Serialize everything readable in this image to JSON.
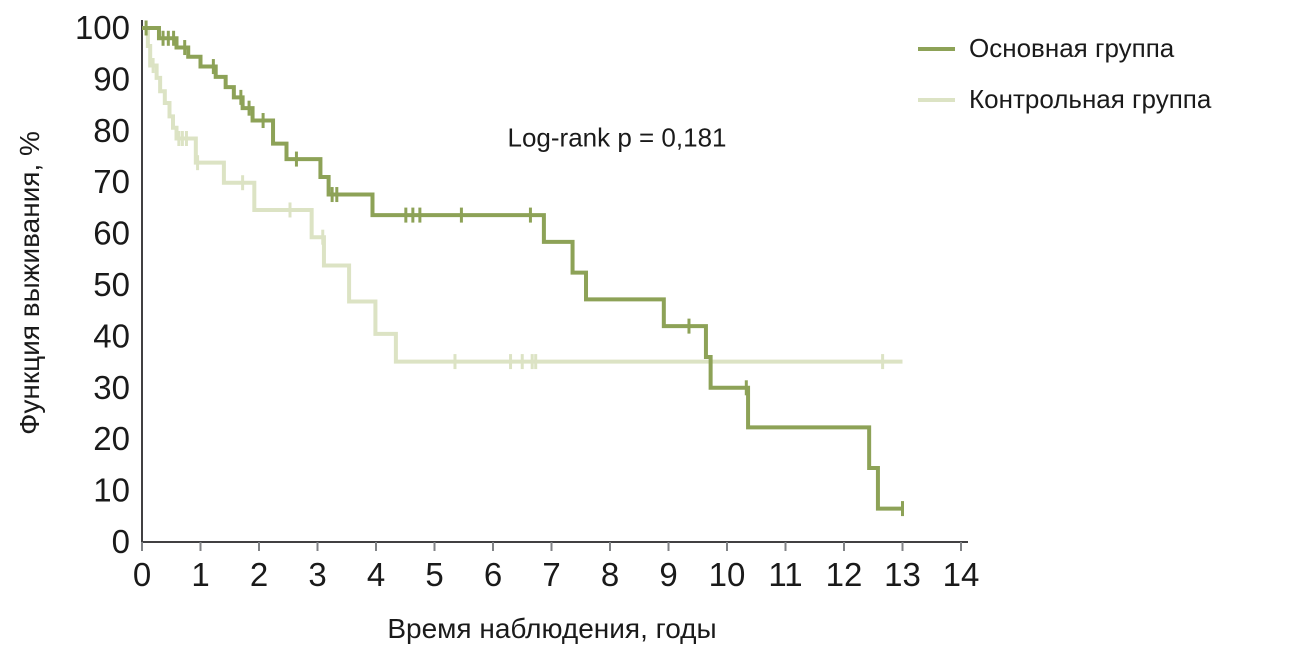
{
  "chart_data": {
    "type": "line",
    "subtype": "kaplan-meier-step",
    "title": "",
    "xlabel": "Время наблюдения, годы",
    "ylabel": "Функция выживания, %",
    "annotation": "Log-rank p = 0,181",
    "xlim": [
      0,
      14
    ],
    "ylim": [
      0,
      100
    ],
    "x_ticks": [
      0,
      1,
      2,
      3,
      4,
      5,
      6,
      7,
      8,
      9,
      10,
      11,
      12,
      13,
      14
    ],
    "y_ticks": [
      0,
      10,
      20,
      30,
      40,
      50,
      60,
      70,
      80,
      90,
      100
    ],
    "grid": false,
    "legend_position": "top-right",
    "series": [
      {
        "name": "Основная группа",
        "color": "#8DA257",
        "points": [
          [
            0,
            100
          ],
          [
            0.29,
            98
          ],
          [
            0.59,
            96.2
          ],
          [
            0.79,
            94.4
          ],
          [
            1.0,
            92.5
          ],
          [
            1.26,
            90.5
          ],
          [
            1.43,
            88.5
          ],
          [
            1.57,
            86.5
          ],
          [
            1.72,
            84.4
          ],
          [
            1.89,
            82
          ],
          [
            2.24,
            77.5
          ],
          [
            2.47,
            74.5
          ],
          [
            3.05,
            71
          ],
          [
            3.19,
            67.6
          ],
          [
            3.94,
            63.6
          ],
          [
            6.87,
            58.4
          ],
          [
            7.36,
            52.4
          ],
          [
            7.59,
            47.2
          ],
          [
            8.92,
            42
          ],
          [
            9.64,
            36
          ],
          [
            9.72,
            30
          ],
          [
            10.36,
            22.3
          ],
          [
            12.43,
            14.4
          ],
          [
            12.58,
            6.5
          ],
          [
            13,
            6.5
          ]
        ],
        "censors": [
          [
            0.07,
            100
          ],
          [
            0.36,
            98
          ],
          [
            0.45,
            98
          ],
          [
            0.54,
            98
          ],
          [
            0.73,
            96.2
          ],
          [
            1.22,
            92.5
          ],
          [
            1.69,
            86.5
          ],
          [
            1.83,
            84.4
          ],
          [
            2.07,
            82
          ],
          [
            2.64,
            74.5
          ],
          [
            3.25,
            67.6
          ],
          [
            3.33,
            67.6
          ],
          [
            4.51,
            63.6
          ],
          [
            4.63,
            63.6
          ],
          [
            4.75,
            63.6
          ],
          [
            5.46,
            63.6
          ],
          [
            6.64,
            63.6
          ],
          [
            9.35,
            42
          ],
          [
            10.33,
            30
          ],
          [
            13,
            6.5
          ]
        ]
      },
      {
        "name": "Контрольная группа",
        "color": "#DCE3C4",
        "points": [
          [
            0,
            100
          ],
          [
            0.1,
            96.5
          ],
          [
            0.14,
            92.7
          ],
          [
            0.25,
            90.3
          ],
          [
            0.31,
            87.7
          ],
          [
            0.39,
            85.4
          ],
          [
            0.47,
            82.8
          ],
          [
            0.53,
            80.6
          ],
          [
            0.59,
            78.5
          ],
          [
            0.92,
            73.8
          ],
          [
            1.4,
            69.9
          ],
          [
            1.92,
            64.6
          ],
          [
            2.9,
            59.3
          ],
          [
            3.11,
            53.8
          ],
          [
            3.54,
            46.8
          ],
          [
            3.99,
            40.5
          ],
          [
            4.34,
            35.1
          ],
          [
            13,
            35.1
          ]
        ],
        "censors": [
          [
            0.19,
            92.7
          ],
          [
            0.63,
            78.5
          ],
          [
            0.69,
            78.5
          ],
          [
            0.76,
            78.5
          ],
          [
            0.95,
            73.8
          ],
          [
            1.72,
            69.9
          ],
          [
            2.53,
            64.6
          ],
          [
            3.09,
            59.3
          ],
          [
            5.35,
            35.1
          ],
          [
            6.3,
            35.1
          ],
          [
            6.5,
            35.1
          ],
          [
            6.67,
            35.1
          ],
          [
            6.73,
            35.1
          ],
          [
            12.66,
            35.1
          ]
        ]
      }
    ],
    "colors": {
      "axis": "#414042",
      "tick": "#808285",
      "text": "#1a1a1a",
      "background": "#ffffff"
    }
  }
}
